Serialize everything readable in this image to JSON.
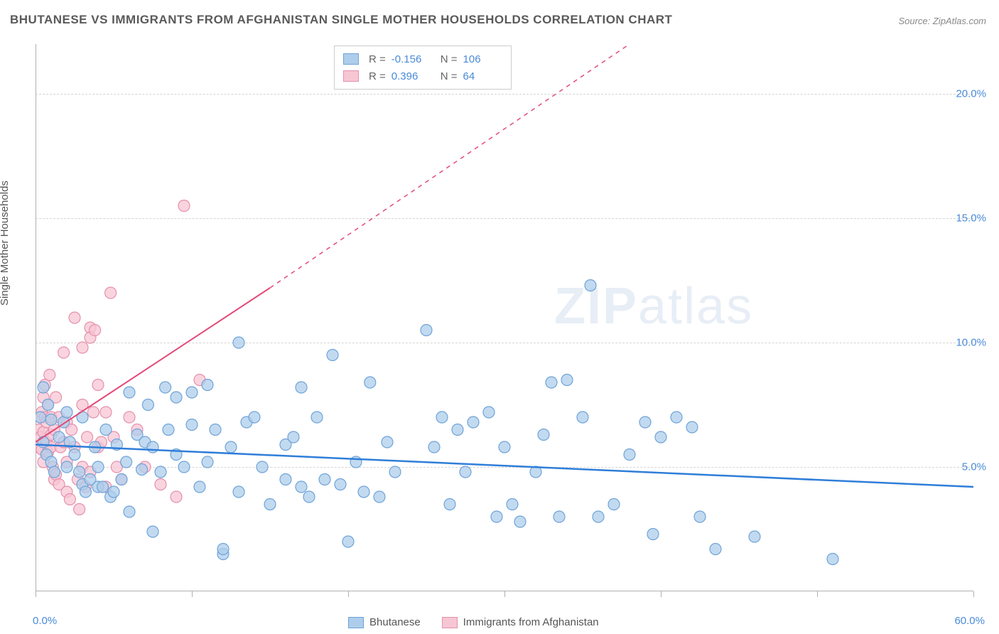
{
  "title": "BHUTANESE VS IMMIGRANTS FROM AFGHANISTAN SINGLE MOTHER HOUSEHOLDS CORRELATION CHART",
  "source": "Source: ZipAtlas.com",
  "ylabel": "Single Mother Households",
  "watermark_bold": "ZIP",
  "watermark_light": "atlas",
  "chart": {
    "type": "scatter",
    "xlim": [
      0,
      60
    ],
    "ylim": [
      0,
      22
    ],
    "x_ticks": [
      0,
      10,
      20,
      30,
      40,
      50,
      60
    ],
    "x_tick_labels": [
      "0.0%",
      "",
      "",
      "",
      "",
      "",
      "60.0%"
    ],
    "y_ticks": [
      5,
      10,
      15,
      20
    ],
    "y_tick_labels": [
      "5.0%",
      "10.0%",
      "15.0%",
      "20.0%"
    ],
    "grid_color": "#d5d5d5",
    "background": "#ffffff",
    "series": [
      {
        "name": "Bhutanese",
        "marker_fill": "#aecdeb",
        "marker_stroke": "#6fa3d8",
        "line_color": "#2f7ed8",
        "line_width": 2.5,
        "marker_radius": 8,
        "R": "-0.156",
        "N": "106",
        "trend": {
          "x1": 0,
          "y1": 5.9,
          "x2": 60,
          "y2": 4.2
        },
        "points": [
          [
            0.3,
            7.0
          ],
          [
            0.5,
            8.2
          ],
          [
            0.5,
            6.0
          ],
          [
            0.7,
            5.5
          ],
          [
            0.8,
            7.5
          ],
          [
            1.0,
            6.9
          ],
          [
            1.0,
            5.2
          ],
          [
            1.2,
            4.8
          ],
          [
            1.5,
            6.2
          ],
          [
            1.8,
            6.8
          ],
          [
            2.0,
            7.2
          ],
          [
            2.0,
            5.0
          ],
          [
            2.2,
            6.0
          ],
          [
            2.5,
            5.5
          ],
          [
            2.8,
            4.8
          ],
          [
            3.0,
            7.0
          ],
          [
            3.0,
            4.3
          ],
          [
            3.2,
            4.0
          ],
          [
            3.5,
            4.5
          ],
          [
            3.8,
            5.8
          ],
          [
            4.0,
            5.0
          ],
          [
            4.0,
            4.2
          ],
          [
            4.3,
            4.2
          ],
          [
            4.5,
            6.5
          ],
          [
            4.8,
            3.8
          ],
          [
            5.0,
            4.0
          ],
          [
            5.2,
            5.9
          ],
          [
            5.5,
            4.5
          ],
          [
            5.8,
            5.2
          ],
          [
            6.0,
            3.2
          ],
          [
            6.0,
            8.0
          ],
          [
            6.5,
            6.3
          ],
          [
            6.8,
            4.9
          ],
          [
            7.0,
            6.0
          ],
          [
            7.2,
            7.5
          ],
          [
            7.5,
            5.8
          ],
          [
            7.5,
            2.4
          ],
          [
            8.0,
            4.8
          ],
          [
            8.3,
            8.2
          ],
          [
            8.5,
            6.5
          ],
          [
            9.0,
            5.5
          ],
          [
            9.0,
            7.8
          ],
          [
            9.5,
            5.0
          ],
          [
            10.0,
            6.7
          ],
          [
            10.0,
            8.0
          ],
          [
            10.5,
            4.2
          ],
          [
            11.0,
            5.2
          ],
          [
            11.0,
            8.3
          ],
          [
            11.5,
            6.5
          ],
          [
            12.0,
            1.5
          ],
          [
            12.0,
            1.7
          ],
          [
            12.5,
            5.8
          ],
          [
            13.0,
            4.0
          ],
          [
            13.0,
            10.0
          ],
          [
            13.5,
            6.8
          ],
          [
            14.0,
            7.0
          ],
          [
            14.5,
            5.0
          ],
          [
            15.0,
            3.5
          ],
          [
            16.0,
            5.9
          ],
          [
            16.0,
            4.5
          ],
          [
            16.5,
            6.2
          ],
          [
            17.0,
            8.2
          ],
          [
            17.0,
            4.2
          ],
          [
            17.5,
            3.8
          ],
          [
            18.0,
            7.0
          ],
          [
            18.5,
            4.5
          ],
          [
            19.0,
            9.5
          ],
          [
            19.5,
            4.3
          ],
          [
            20.0,
            2.0
          ],
          [
            20.5,
            5.2
          ],
          [
            21.0,
            4.0
          ],
          [
            21.4,
            8.4
          ],
          [
            22.0,
            3.8
          ],
          [
            22.5,
            6.0
          ],
          [
            23.0,
            4.8
          ],
          [
            25.0,
            10.5
          ],
          [
            25.5,
            5.8
          ],
          [
            26.0,
            7.0
          ],
          [
            26.5,
            3.5
          ],
          [
            27.0,
            6.5
          ],
          [
            27.5,
            4.8
          ],
          [
            28.0,
            6.8
          ],
          [
            29.0,
            7.2
          ],
          [
            29.5,
            3.0
          ],
          [
            30.0,
            5.8
          ],
          [
            30.5,
            3.5
          ],
          [
            31.0,
            2.8
          ],
          [
            32.0,
            4.8
          ],
          [
            32.5,
            6.3
          ],
          [
            33.0,
            8.4
          ],
          [
            33.5,
            3.0
          ],
          [
            34.0,
            8.5
          ],
          [
            35.0,
            7.0
          ],
          [
            35.5,
            12.3
          ],
          [
            36.0,
            3.0
          ],
          [
            37.0,
            3.5
          ],
          [
            38.0,
            5.5
          ],
          [
            39.0,
            6.8
          ],
          [
            39.5,
            2.3
          ],
          [
            40.0,
            6.2
          ],
          [
            41.0,
            7.0
          ],
          [
            42.0,
            6.6
          ],
          [
            42.5,
            3.0
          ],
          [
            43.5,
            1.7
          ],
          [
            46.0,
            2.2
          ],
          [
            51.0,
            1.3
          ]
        ]
      },
      {
        "name": "Immigrants from Afghanistan",
        "marker_fill": "#f7c6d4",
        "marker_stroke": "#e590ac",
        "line_color": "#e34b79",
        "line_width": 2,
        "marker_radius": 8,
        "R": "0.396",
        "N": "64",
        "trend_solid": {
          "x1": 0,
          "y1": 6.0,
          "x2": 15,
          "y2": 12.2
        },
        "trend_dashed": {
          "x1": 15,
          "y1": 12.2,
          "x2": 38,
          "y2": 22
        },
        "points": [
          [
            0.2,
            5.8
          ],
          [
            0.2,
            6.5
          ],
          [
            0.3,
            7.0
          ],
          [
            0.3,
            6.2
          ],
          [
            0.4,
            7.2
          ],
          [
            0.4,
            5.7
          ],
          [
            0.5,
            7.8
          ],
          [
            0.5,
            6.4
          ],
          [
            0.5,
            5.2
          ],
          [
            0.6,
            7.0
          ],
          [
            0.6,
            8.3
          ],
          [
            0.7,
            6.0
          ],
          [
            0.7,
            6.8
          ],
          [
            0.8,
            5.6
          ],
          [
            0.8,
            7.5
          ],
          [
            0.9,
            8.7
          ],
          [
            1.0,
            6.3
          ],
          [
            1.0,
            5.8
          ],
          [
            1.0,
            7.0
          ],
          [
            1.1,
            5.0
          ],
          [
            1.2,
            4.5
          ],
          [
            1.2,
            6.5
          ],
          [
            1.3,
            7.8
          ],
          [
            1.3,
            4.7
          ],
          [
            1.5,
            7.0
          ],
          [
            1.5,
            4.3
          ],
          [
            1.6,
            5.8
          ],
          [
            1.8,
            6.0
          ],
          [
            1.8,
            9.6
          ],
          [
            2.0,
            6.8
          ],
          [
            2.0,
            4.0
          ],
          [
            2.0,
            5.2
          ],
          [
            2.2,
            3.7
          ],
          [
            2.3,
            6.5
          ],
          [
            2.5,
            5.8
          ],
          [
            2.5,
            11.0
          ],
          [
            2.7,
            4.5
          ],
          [
            2.8,
            3.3
          ],
          [
            3.0,
            5.0
          ],
          [
            3.0,
            7.5
          ],
          [
            3.0,
            9.8
          ],
          [
            3.2,
            4.2
          ],
          [
            3.3,
            6.2
          ],
          [
            3.5,
            10.6
          ],
          [
            3.5,
            10.2
          ],
          [
            3.5,
            4.8
          ],
          [
            3.7,
            7.2
          ],
          [
            3.8,
            10.5
          ],
          [
            4.0,
            5.8
          ],
          [
            4.0,
            8.3
          ],
          [
            4.2,
            6.0
          ],
          [
            4.5,
            7.2
          ],
          [
            4.5,
            4.2
          ],
          [
            4.8,
            12.0
          ],
          [
            5.0,
            6.2
          ],
          [
            5.2,
            5.0
          ],
          [
            5.5,
            4.5
          ],
          [
            6.0,
            7.0
          ],
          [
            6.5,
            6.5
          ],
          [
            7.0,
            5.0
          ],
          [
            8.0,
            4.3
          ],
          [
            9.0,
            3.8
          ],
          [
            9.5,
            15.5
          ],
          [
            10.5,
            8.5
          ]
        ]
      }
    ]
  },
  "legend_bottom": [
    {
      "label": "Bhutanese",
      "fill": "#aecdeb",
      "stroke": "#6fa3d8"
    },
    {
      "label": "Immigrants from Afghanistan",
      "fill": "#f7c6d4",
      "stroke": "#e590ac"
    }
  ]
}
